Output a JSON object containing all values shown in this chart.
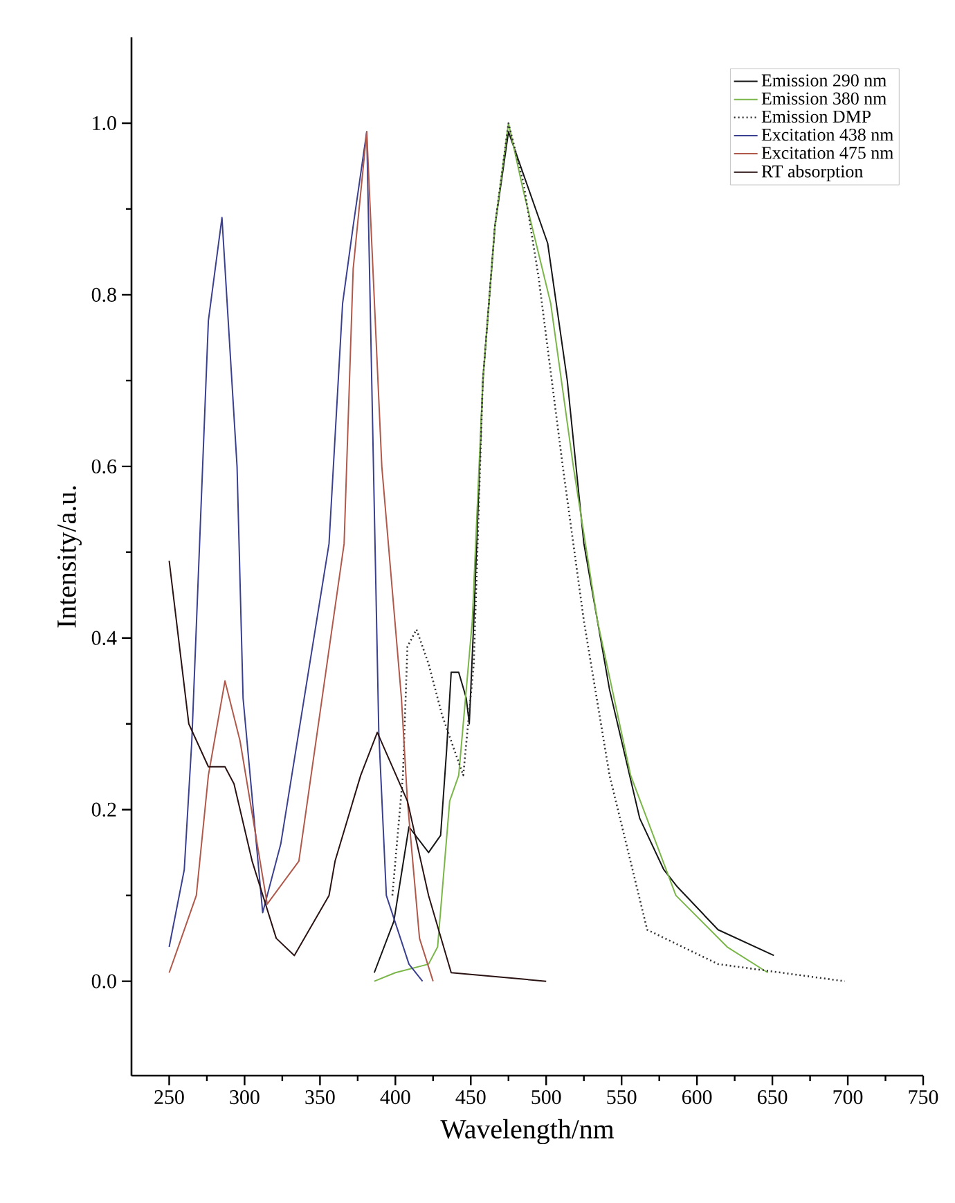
{
  "chart_data": {
    "type": "line",
    "xlabel": "Wavelength/nm",
    "ylabel": "Intensity/a.u.",
    "xlim": [
      225,
      750
    ],
    "ylim": [
      -0.11,
      1.1
    ],
    "xticks": [
      250,
      300,
      350,
      400,
      450,
      500,
      550,
      600,
      650,
      700,
      750
    ],
    "yticks": [
      {
        "value": 0,
        "label": "0.0"
      },
      {
        "value": 0.2,
        "label": "0.2"
      },
      {
        "value": 0.4,
        "label": "0.4"
      },
      {
        "value": 0.6,
        "label": "0.6"
      },
      {
        "value": 0.8,
        "label": "0.8"
      },
      {
        "value": 1.0,
        "label": "1.0"
      }
    ],
    "grid": false,
    "legend": "top right",
    "series": [
      {
        "name": "Emission 290 nm",
        "color": "#151515",
        "line_style": "solid",
        "x": [
          386,
          399,
          409,
          422,
          430,
          434,
          437,
          442,
          447,
          449,
          452,
          458,
          466,
          475,
          485,
          501,
          514,
          525,
          542,
          562,
          578,
          587,
          614,
          651
        ],
        "values": [
          0.01,
          0.07,
          0.18,
          0.15,
          0.17,
          0.27,
          0.36,
          0.36,
          0.33,
          0.3,
          0.42,
          0.7,
          0.88,
          0.99,
          0.94,
          0.86,
          0.7,
          0.51,
          0.34,
          0.19,
          0.13,
          0.11,
          0.06,
          0.03
        ]
      },
      {
        "name": "Emission 380 nm",
        "color": "#7ab648",
        "line_style": "solid",
        "x": [
          386,
          400,
          422,
          428,
          436,
          442,
          451,
          458,
          466,
          475,
          485,
          503,
          518,
          534,
          556,
          586,
          620,
          647
        ],
        "values": [
          0.0,
          0.01,
          0.02,
          0.04,
          0.21,
          0.24,
          0.42,
          0.7,
          0.88,
          1.0,
          0.92,
          0.79,
          0.6,
          0.42,
          0.24,
          0.1,
          0.04,
          0.01
        ]
      },
      {
        "name": "Emission DMP",
        "color": "#303030",
        "line_style": "dotted",
        "x": [
          398,
          405,
          408,
          414,
          422,
          431,
          445,
          452,
          458,
          466,
          475,
          485,
          495,
          511,
          525,
          542,
          567,
          614,
          698
        ],
        "values": [
          0.1,
          0.24,
          0.39,
          0.41,
          0.37,
          0.31,
          0.24,
          0.37,
          0.7,
          0.88,
          1.0,
          0.93,
          0.82,
          0.6,
          0.42,
          0.24,
          0.06,
          0.02,
          0.0
        ]
      },
      {
        "name": "Excitation 438 nm",
        "color": "#3a3f8f",
        "line_style": "solid",
        "x": [
          250,
          260,
          265,
          276,
          285,
          295,
          299,
          312,
          324,
          356,
          365,
          372,
          381,
          389,
          394,
          409,
          418
        ],
        "values": [
          0.04,
          0.13,
          0.28,
          0.77,
          0.89,
          0.6,
          0.33,
          0.08,
          0.16,
          0.51,
          0.79,
          0.88,
          0.99,
          0.29,
          0.1,
          0.02,
          0.0
        ]
      },
      {
        "name": "Excitation 475 nm",
        "color": "#b0584a",
        "line_style": "solid",
        "x": [
          250,
          268,
          276,
          287,
          297,
          315,
          336,
          366,
          372,
          381,
          391,
          404,
          408,
          416,
          425
        ],
        "values": [
          0.01,
          0.1,
          0.24,
          0.35,
          0.28,
          0.09,
          0.14,
          0.51,
          0.83,
          0.99,
          0.6,
          0.33,
          0.21,
          0.05,
          0.0
        ]
      },
      {
        "name": "RT absorption",
        "color": "#2a1212",
        "line_style": "solid",
        "x": [
          250,
          263,
          276,
          287,
          293,
          305,
          321,
          333,
          356,
          360,
          377,
          388,
          408,
          422,
          437,
          500
        ],
        "values": [
          0.49,
          0.3,
          0.25,
          0.25,
          0.23,
          0.14,
          0.05,
          0.03,
          0.1,
          0.14,
          0.24,
          0.29,
          0.21,
          0.1,
          0.01,
          0.0
        ]
      }
    ]
  }
}
